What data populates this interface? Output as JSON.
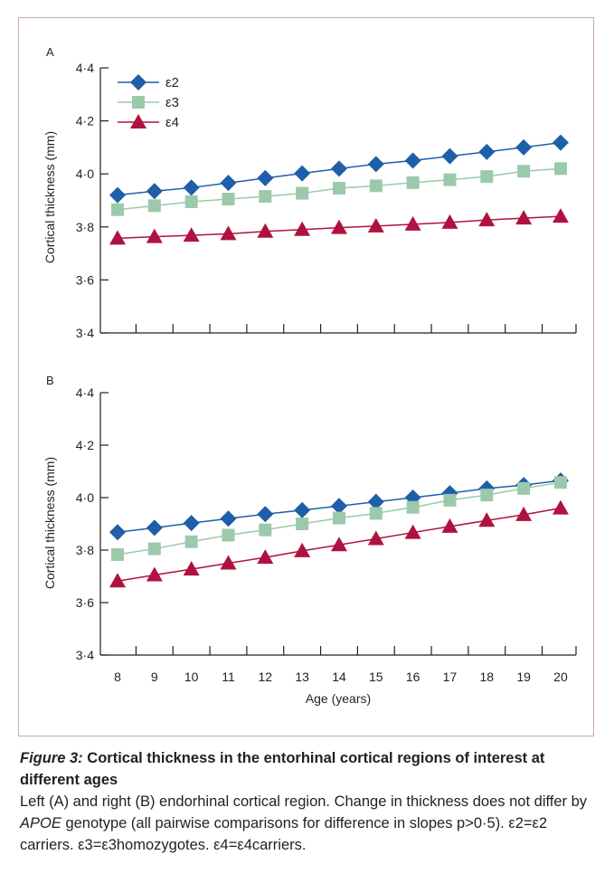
{
  "chart_data": [
    {
      "type": "line",
      "panel_label": "A",
      "x": [
        8,
        9,
        10,
        11,
        12,
        13,
        14,
        15,
        16,
        17,
        18,
        19,
        20
      ],
      "ylabel": "Cortical thickness (mm)",
      "ylim": [
        3.4,
        4.4
      ],
      "yticks": [
        "3·4",
        "3·6",
        "3·8",
        "4·0",
        "4·2",
        "4·4"
      ],
      "legend_position": "top-left",
      "series": [
        {
          "name": "ε2",
          "marker": "diamond",
          "color": "#1f5ea8",
          "values": [
            3.92,
            3.935,
            3.948,
            3.966,
            3.984,
            4.002,
            4.02,
            4.037,
            4.05,
            4.067,
            4.083,
            4.1,
            4.118
          ]
        },
        {
          "name": "ε3",
          "marker": "square",
          "color": "#9cc9ab",
          "values": [
            3.865,
            3.88,
            3.895,
            3.905,
            3.915,
            3.927,
            3.946,
            3.955,
            3.967,
            3.978,
            3.99,
            4.01,
            4.02
          ]
        },
        {
          "name": "ε4",
          "marker": "triangle",
          "color": "#b0123f",
          "values": [
            3.757,
            3.763,
            3.768,
            3.774,
            3.783,
            3.79,
            3.797,
            3.803,
            3.81,
            3.817,
            3.826,
            3.833,
            3.84
          ]
        }
      ]
    },
    {
      "type": "line",
      "panel_label": "B",
      "x": [
        8,
        9,
        10,
        11,
        12,
        13,
        14,
        15,
        16,
        17,
        18,
        19,
        20
      ],
      "xlabel": "Age (years)",
      "ylabel": "Cortical thickness (mm)",
      "ylim": [
        3.4,
        4.4
      ],
      "yticks": [
        "3·4",
        "3·6",
        "3·8",
        "4·0",
        "4·2",
        "4·4"
      ],
      "series": [
        {
          "name": "ε2",
          "marker": "diamond",
          "color": "#1f5ea8",
          "values": [
            3.868,
            3.885,
            3.903,
            3.92,
            3.937,
            3.952,
            3.968,
            3.984,
            4.0,
            4.017,
            4.035,
            4.048,
            4.065
          ]
        },
        {
          "name": "ε3",
          "marker": "square",
          "color": "#9cc9ab",
          "values": [
            3.783,
            3.805,
            3.832,
            3.857,
            3.877,
            3.9,
            3.922,
            3.94,
            3.963,
            3.99,
            4.01,
            4.035,
            4.058
          ]
        },
        {
          "name": "ε4",
          "marker": "triangle",
          "color": "#b0123f",
          "values": [
            3.682,
            3.705,
            3.727,
            3.75,
            3.772,
            3.797,
            3.82,
            3.843,
            3.867,
            3.89,
            3.913,
            3.935,
            3.96
          ]
        }
      ]
    }
  ],
  "caption": {
    "figure_label": "Figure 3:",
    "title": "Cortical thickness in the entorhinal cortical regions of interest at different ages",
    "body_before": "Left (A) and right (B) endorhinal cortical region. Change in thickness does not differ by ",
    "body_gene": "APOE",
    "body_after": " genotype (all pairwise comparisons for difference in slopes p>0·5). ε2=ε2 carriers. ε3=ε3homozygotes. ε4=ε4carriers."
  }
}
